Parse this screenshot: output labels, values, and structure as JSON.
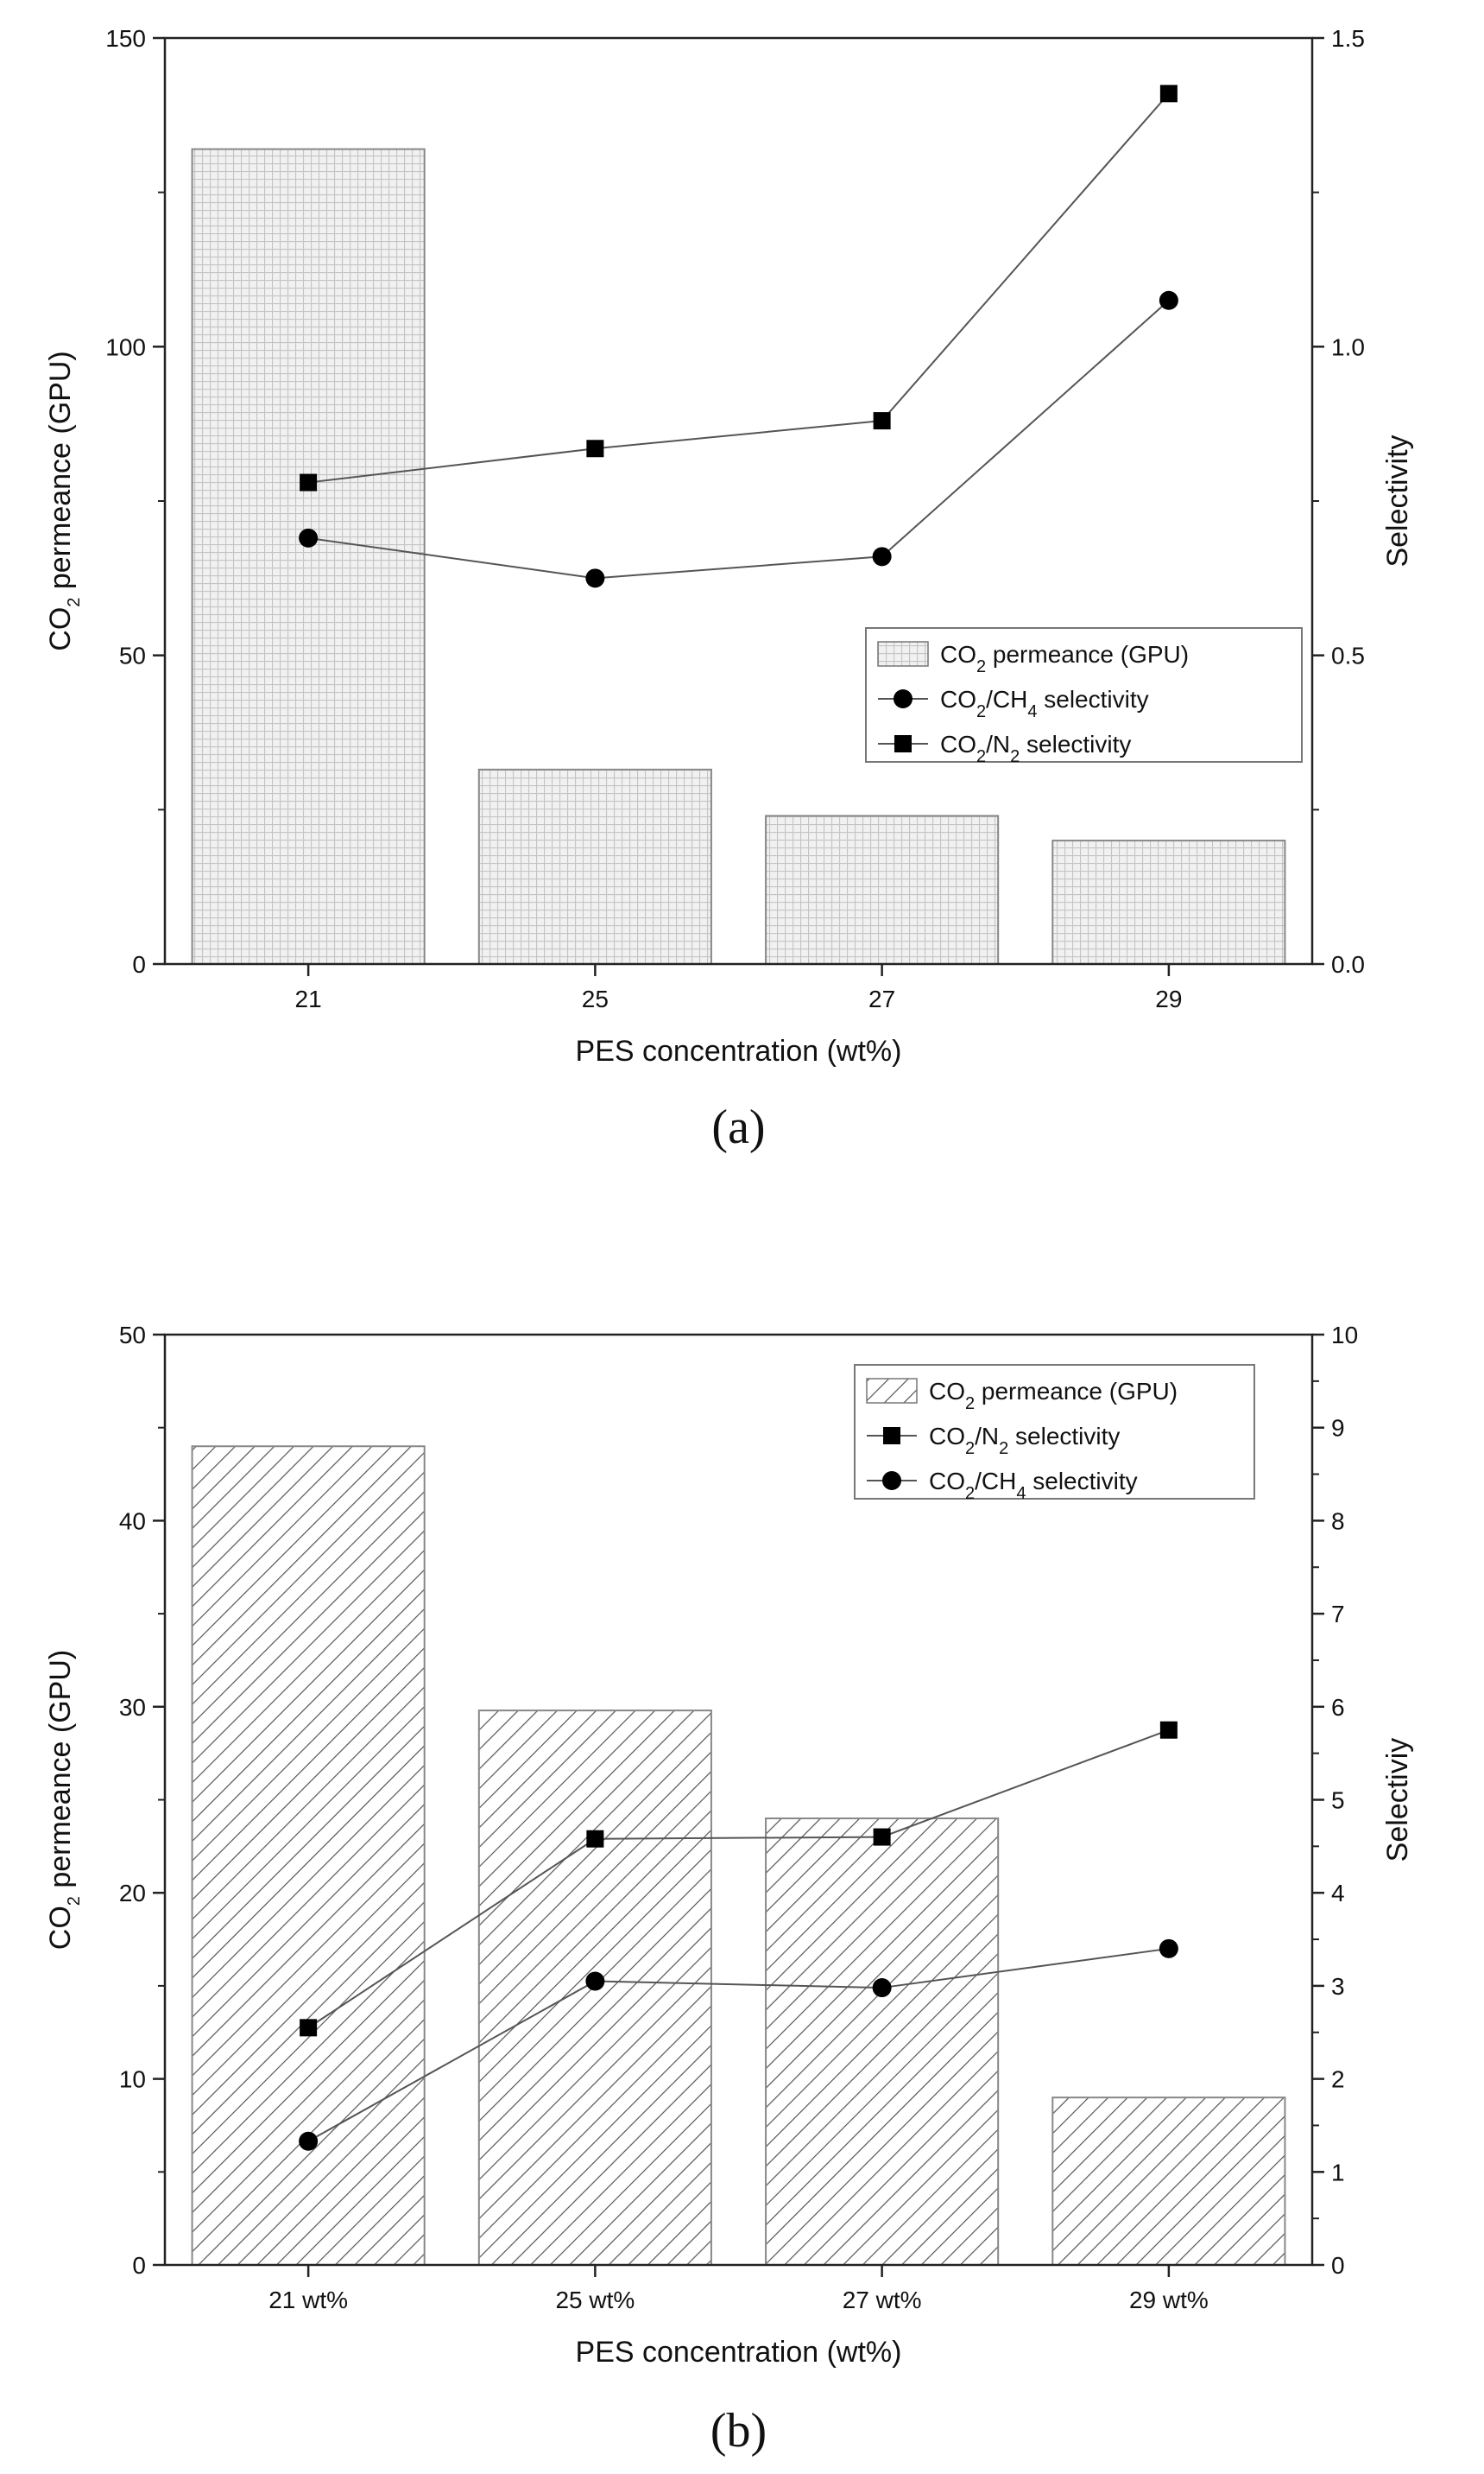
{
  "chart_data": [
    {
      "id": "a",
      "type": "bar+line",
      "caption": "(a)",
      "categories": [
        "21",
        "25",
        "27",
        "29"
      ],
      "xlabel": "PES concentration (wt%)",
      "ylabel": {
        "pre": "CO",
        "sub": "2",
        "post": " permeance (GPU)"
      },
      "y2label": "Selectivity",
      "ylim": [
        0,
        150
      ],
      "y2lim": [
        0,
        1.5
      ],
      "yticks": [
        0,
        50,
        100,
        150
      ],
      "y2ticks": [
        "0.0",
        "0.5",
        "1.0",
        "1.5"
      ],
      "y2tick_values": [
        0,
        0.5,
        1.0,
        1.5
      ],
      "bar_pattern": "grid",
      "bars": {
        "name": "CO2 permeance (GPU)",
        "values": [
          132,
          31.5,
          24,
          20
        ]
      },
      "series": [
        {
          "name": "CO2/N2 selectivity",
          "marker": "square",
          "values": [
            0.78,
            0.835,
            0.88,
            1.41
          ]
        },
        {
          "name": "CO2/CH4 selectivity",
          "marker": "circle",
          "values": [
            0.69,
            0.625,
            0.66,
            1.075
          ]
        }
      ],
      "legend_position": "middle-right",
      "legend": [
        {
          "marker": "bar",
          "pre": "CO",
          "sub": "2",
          "post": " permeance (GPU)"
        },
        {
          "marker": "circle",
          "pre": "CO",
          "sub": "2",
          "post": "/CH",
          "sub2": "4",
          "post2": " selectivity"
        },
        {
          "marker": "square",
          "pre": "CO",
          "sub": "2",
          "post": "/N",
          "sub2": "2",
          "post2": " selectivity"
        }
      ]
    },
    {
      "id": "b",
      "type": "bar+line",
      "caption": "(b)",
      "categories": [
        "21 wt%",
        "25 wt%",
        "27 wt%",
        "29 wt%"
      ],
      "xlabel": "PES concentration (wt%)",
      "ylabel": {
        "pre": "CO",
        "sub": "2",
        "post": " permeance (GPU)"
      },
      "y2label": "Selectiviy",
      "ylim": [
        0,
        50
      ],
      "y2lim": [
        0,
        10
      ],
      "yticks": [
        0,
        10,
        20,
        30,
        40,
        50
      ],
      "y2ticks": [
        "0",
        "1",
        "2",
        "3",
        "4",
        "5",
        "6",
        "7",
        "8",
        "9",
        "10"
      ],
      "y2tick_values": [
        0,
        1,
        2,
        3,
        4,
        5,
        6,
        7,
        8,
        9,
        10
      ],
      "bar_pattern": "hatch",
      "bars": {
        "name": "CO2 permeance (GPU)",
        "values": [
          44,
          29.8,
          24,
          9
        ]
      },
      "series": [
        {
          "name": "CO2/N2 selectivity",
          "marker": "square",
          "values": [
            2.55,
            4.58,
            4.6,
            5.75
          ]
        },
        {
          "name": "CO2/CH4 selectivity",
          "marker": "circle",
          "values": [
            1.33,
            3.05,
            2.98,
            3.4
          ]
        }
      ],
      "legend_position": "top-right",
      "legend": [
        {
          "marker": "bar",
          "pre": "CO",
          "sub": "2",
          "post": " permeance (GPU)"
        },
        {
          "marker": "square",
          "pre": "CO",
          "sub": "2",
          "post": "/N",
          "sub2": "2",
          "post2": " selectivity"
        },
        {
          "marker": "circle",
          "pre": "CO",
          "sub": "2",
          "post": "/CH",
          "sub2": "4",
          "post2": " selectivity"
        }
      ]
    }
  ]
}
